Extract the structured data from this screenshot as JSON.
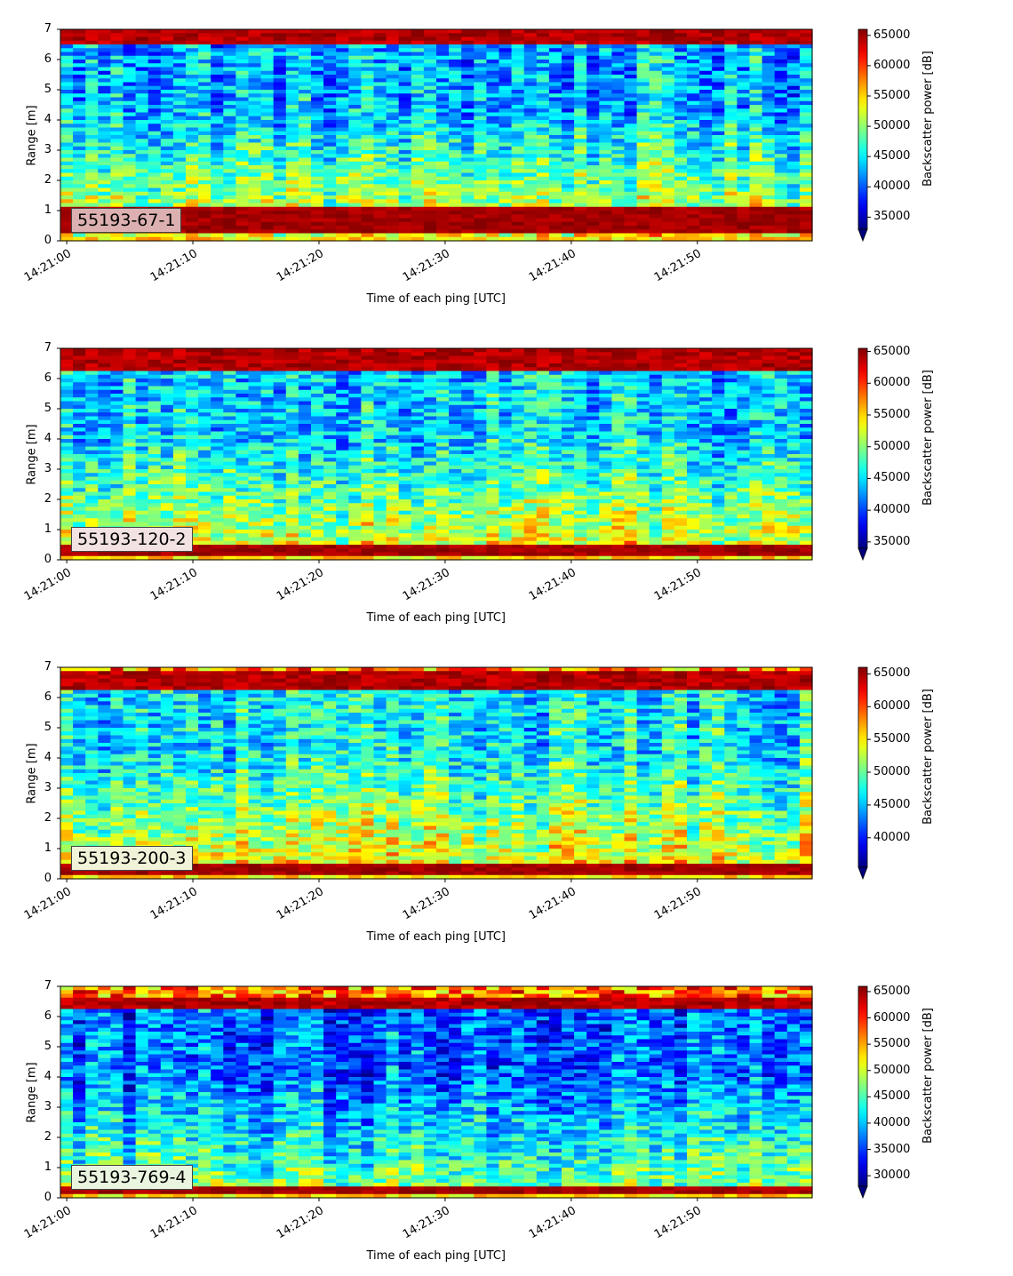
{
  "chart_data": [
    {
      "type": "heatmap",
      "label": "55193-67-1",
      "label_bg": "#dcb0b0",
      "xlabel": "Time of each ping [UTC]",
      "ylabel": "Range [m]",
      "x_ticks": [
        "14:21:00",
        "14:21:10",
        "14:21:20",
        "14:21:30",
        "14:21:40",
        "14:21:50"
      ],
      "xlim": [
        "14:20:59.5",
        "14:21:59.1"
      ],
      "ylim": [
        0,
        7
      ],
      "y_ticks": [
        0,
        1,
        2,
        3,
        4,
        5,
        6,
        7
      ],
      "colorbar_label": "Backscatter power [dB]",
      "colorbar_ticks": [
        35000,
        40000,
        45000,
        50000,
        55000,
        60000,
        65000
      ],
      "colorbar_range": [
        33000,
        66000
      ],
      "colormap": "jet",
      "profile": {
        "bottom_band": [
          0.2,
          1.1
        ],
        "surface_band": [
          6.45,
          7.0
        ],
        "near_bottom_level": 0.55,
        "mid_level": 0.3
      }
    },
    {
      "type": "heatmap",
      "label": "55193-120-2",
      "label_bg": "#f3e2e2",
      "xlabel": "Time of each ping [UTC]",
      "ylabel": "Range [m]",
      "x_ticks": [
        "14:21:00",
        "14:21:10",
        "14:21:20",
        "14:21:30",
        "14:21:40",
        "14:21:50"
      ],
      "xlim": [
        "14:20:59.5",
        "14:21:59.1"
      ],
      "ylim": [
        0,
        7
      ],
      "y_ticks": [
        0,
        1,
        2,
        3,
        4,
        5,
        6,
        7
      ],
      "colorbar_label": "Backscatter power [dB]",
      "colorbar_ticks": [
        35000,
        40000,
        45000,
        50000,
        55000,
        60000,
        65000
      ],
      "colorbar_range": [
        34000,
        65500
      ],
      "colormap": "jet",
      "profile": {
        "bottom_band": [
          0.15,
          0.55
        ],
        "surface_band": [
          6.3,
          6.95
        ],
        "near_bottom_level": 0.6,
        "mid_level": 0.33
      }
    },
    {
      "type": "heatmap",
      "label": "55193-200-3",
      "label_bg": "#f0f3d8",
      "xlabel": "Time of each ping [UTC]",
      "ylabel": "Range [m]",
      "x_ticks": [
        "14:21:00",
        "14:21:10",
        "14:21:20",
        "14:21:30",
        "14:21:40",
        "14:21:50"
      ],
      "xlim": [
        "14:20:59.5",
        "14:21:59.1"
      ],
      "ylim": [
        0,
        7
      ],
      "y_ticks": [
        0,
        1,
        2,
        3,
        4,
        5,
        6,
        7
      ],
      "colorbar_label": "Backscatter power [dB]",
      "colorbar_ticks": [
        40000,
        45000,
        50000,
        55000,
        60000,
        65000
      ],
      "colorbar_range": [
        35500,
        66000
      ],
      "colormap": "jet",
      "profile": {
        "bottom_band": [
          0.15,
          0.5
        ],
        "surface_band": [
          6.3,
          6.85
        ],
        "near_bottom_level": 0.62,
        "mid_level": 0.37
      }
    },
    {
      "type": "heatmap",
      "label": "55193-769-4",
      "label_bg": "#eaf5e0",
      "xlabel": "Time of each ping [UTC]",
      "ylabel": "Range [m]",
      "x_ticks": [
        "14:21:00",
        "14:21:10",
        "14:21:20",
        "14:21:30",
        "14:21:40",
        "14:21:50"
      ],
      "xlim": [
        "14:20:59.5",
        "14:21:59.1"
      ],
      "ylim": [
        0,
        7
      ],
      "y_ticks": [
        0,
        1,
        2,
        3,
        4,
        5,
        6,
        7
      ],
      "colorbar_label": "Backscatter power [dB]",
      "colorbar_ticks": [
        30000,
        35000,
        40000,
        45000,
        50000,
        55000,
        60000,
        65000
      ],
      "colorbar_range": [
        28000,
        66000
      ],
      "colormap": "jet",
      "profile": {
        "bottom_band": [
          0.15,
          0.35
        ],
        "surface_band": [
          6.3,
          6.6
        ],
        "near_bottom_level": 0.5,
        "mid_level": 0.22
      }
    }
  ]
}
